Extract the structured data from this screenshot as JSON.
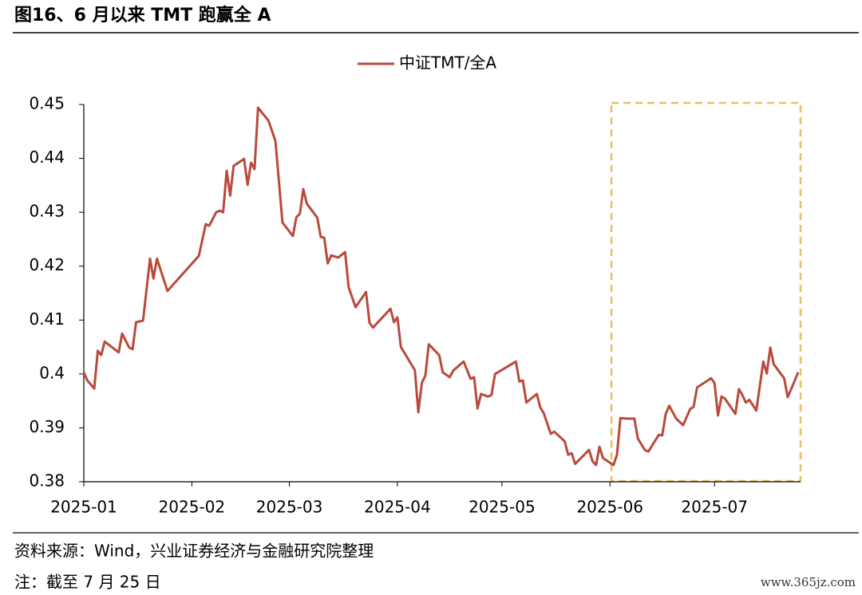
{
  "chart_data": {
    "type": "line",
    "title": "图16、6 月以来 TMT 跑赢全 A",
    "x": [
      0,
      1,
      3,
      4,
      5,
      6,
      10,
      11,
      13,
      14,
      15,
      17,
      19,
      20,
      21,
      24,
      33,
      35,
      36,
      38,
      39,
      40,
      41,
      42,
      43,
      46,
      47,
      48,
      49,
      50,
      53,
      55,
      57,
      60,
      61,
      62,
      63,
      64,
      67,
      68,
      69,
      70,
      71,
      73,
      75,
      76,
      78,
      81,
      82,
      83,
      88,
      89,
      90,
      91,
      95,
      96,
      97,
      98,
      99,
      102,
      103,
      105,
      106,
      109,
      111,
      112,
      113,
      114,
      116,
      117,
      118,
      124,
      125,
      126,
      127,
      130,
      131,
      132,
      134,
      135,
      138,
      139,
      140,
      141,
      145,
      146,
      147,
      148,
      149,
      152,
      153,
      154,
      156,
      158,
      159,
      161,
      162,
      165,
      166,
      167,
      168,
      170,
      172,
      174,
      175,
      176,
      180,
      181,
      182,
      183,
      184,
      187,
      188,
      189,
      190,
      191,
      193,
      195,
      196,
      197,
      198,
      201,
      202,
      203,
      205
    ],
    "series": [
      {
        "name": "中证TMT/全A",
        "color": "#b94a3c",
        "values": [
          0.4003,
          0.3988,
          0.3973,
          0.4043,
          0.4035,
          0.406,
          0.404,
          0.4075,
          0.4049,
          0.4046,
          0.4096,
          0.4099,
          0.4214,
          0.4177,
          0.4214,
          0.4154,
          0.4219,
          0.4278,
          0.4275,
          0.43,
          0.4303,
          0.43,
          0.4377,
          0.4331,
          0.4386,
          0.4399,
          0.4351,
          0.4392,
          0.438,
          0.4494,
          0.447,
          0.4432,
          0.4281,
          0.4256,
          0.4291,
          0.4297,
          0.4343,
          0.4316,
          0.429,
          0.4254,
          0.4253,
          0.4205,
          0.422,
          0.4216,
          0.4226,
          0.4161,
          0.4124,
          0.4152,
          0.4095,
          0.4086,
          0.4121,
          0.4096,
          0.4105,
          0.405,
          0.4007,
          0.3929,
          0.3983,
          0.3997,
          0.4055,
          0.4035,
          0.4003,
          0.3994,
          0.4006,
          0.4023,
          0.3991,
          0.3994,
          0.3936,
          0.3963,
          0.3958,
          0.3961,
          0.4,
          0.4023,
          0.3986,
          0.3988,
          0.3947,
          0.3963,
          0.3938,
          0.3927,
          0.3889,
          0.3893,
          0.3875,
          0.385,
          0.3853,
          0.3833,
          0.3859,
          0.3838,
          0.3831,
          0.3865,
          0.3844,
          0.3831,
          0.385,
          0.3918,
          0.3917,
          0.3917,
          0.388,
          0.3859,
          0.3856,
          0.3887,
          0.3886,
          0.3926,
          0.3941,
          0.3917,
          0.3905,
          0.3935,
          0.3939,
          0.3975,
          0.3992,
          0.3983,
          0.3923,
          0.3958,
          0.3954,
          0.3926,
          0.3972,
          0.3961,
          0.3947,
          0.3952,
          0.3932,
          0.4023,
          0.4001,
          0.4049,
          0.4018,
          0.3992,
          0.3957,
          0.3972,
          0.4003
        ]
      }
    ],
    "xlim": [
      0,
      205
    ],
    "xticks": [
      {
        "value": 0,
        "label": "2025-01"
      },
      {
        "value": 31,
        "label": "2025-02"
      },
      {
        "value": 59,
        "label": "2025-03"
      },
      {
        "value": 90,
        "label": "2025-04"
      },
      {
        "value": 120,
        "label": "2025-05"
      },
      {
        "value": 151,
        "label": "2025-06"
      },
      {
        "value": 181,
        "label": "2025-07"
      }
    ],
    "ylim": [
      0.38,
      0.45
    ],
    "yticks": [
      0.38,
      0.39,
      0.4,
      0.41,
      0.42,
      0.43,
      0.44,
      0.45
    ],
    "legend": "top",
    "grid": false
  },
  "source": "资料来源：Wind，兴业证券经济与金融研究院整理",
  "note": "注：截至 7 月 25 日",
  "watermark": "www.365jz.com"
}
